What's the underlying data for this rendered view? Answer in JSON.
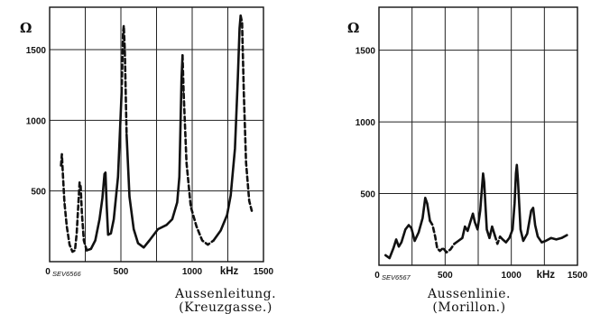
{
  "chart_data": [
    {
      "type": "line",
      "ylabel": "Ω",
      "xlabel": "kHz",
      "plate_code": "SEV6566",
      "xlim": [
        0,
        1500
      ],
      "ylim": [
        0,
        1800
      ],
      "xticks": [
        0,
        500,
        1000,
        1500
      ],
      "xtick_labels": [
        "0",
        "500",
        "1000",
        "1500"
      ],
      "yticks": [
        500,
        1000,
        1500
      ],
      "ytick_labels": [
        "500",
        "1000",
        "1500"
      ],
      "grid": true,
      "caption_line1": "Aussenleitung.",
      "caption_line2": "(Kreuzgasse.)",
      "series": [
        {
          "line_style": "solid/dashed",
          "points": [
            [
              80,
              680
            ],
            [
              86,
              760
            ],
            [
              92,
              640
            ],
            [
              104,
              420
            ],
            [
              120,
              250
            ],
            [
              140,
              120
            ],
            [
              160,
              70
            ],
            [
              178,
              80
            ],
            [
              190,
              200
            ],
            [
              200,
              380
            ],
            [
              210,
              560
            ],
            [
              218,
              530
            ],
            [
              226,
              350
            ],
            [
              240,
              150
            ],
            [
              260,
              80
            ],
            [
              290,
              90
            ],
            [
              320,
              150
            ],
            [
              350,
              300
            ],
            [
              370,
              450
            ],
            [
              385,
              620
            ],
            [
              392,
              630
            ],
            [
              400,
              400
            ],
            [
              410,
              190
            ],
            [
              430,
              200
            ],
            [
              450,
              300
            ],
            [
              480,
              600
            ],
            [
              505,
              1200
            ],
            [
              515,
              1620
            ],
            [
              520,
              1670
            ],
            [
              527,
              1500
            ],
            [
              540,
              900
            ],
            [
              560,
              460
            ],
            [
              590,
              230
            ],
            [
              620,
              130
            ],
            [
              660,
              100
            ],
            [
              700,
              150
            ],
            [
              760,
              230
            ],
            [
              820,
              260
            ],
            [
              860,
              300
            ],
            [
              895,
              420
            ],
            [
              910,
              600
            ],
            [
              925,
              1300
            ],
            [
              932,
              1460
            ],
            [
              940,
              1200
            ],
            [
              960,
              700
            ],
            [
              990,
              390
            ],
            [
              1030,
              250
            ],
            [
              1070,
              150
            ],
            [
              1110,
              120
            ],
            [
              1150,
              150
            ],
            [
              1200,
              220
            ],
            [
              1245,
              330
            ],
            [
              1270,
              470
            ],
            [
              1300,
              800
            ],
            [
              1320,
              1300
            ],
            [
              1332,
              1650
            ],
            [
              1340,
              1740
            ],
            [
              1350,
              1690
            ],
            [
              1362,
              1200
            ],
            [
              1378,
              700
            ],
            [
              1400,
              430
            ],
            [
              1418,
              360
            ]
          ]
        }
      ]
    },
    {
      "type": "line",
      "ylabel": "Ω",
      "xlabel": "kHz",
      "plate_code": "SEV6567",
      "xlim": [
        0,
        1500
      ],
      "ylim": [
        0,
        1800
      ],
      "xticks": [
        0,
        500,
        1000,
        1500
      ],
      "xtick_labels": [
        "0",
        "500",
        "1000",
        "1500"
      ],
      "yticks": [
        500,
        1000,
        1500
      ],
      "ytick_labels": [
        "500",
        "1000",
        "1500"
      ],
      "grid": true,
      "caption_line1": "Aussenlinie.",
      "caption_line2": "(Morillon.)",
      "series": [
        {
          "line_style": "solid/dashed",
          "points": [
            [
              50,
              70
            ],
            [
              80,
              50
            ],
            [
              110,
              120
            ],
            [
              130,
              180
            ],
            [
              150,
              130
            ],
            [
              170,
              160
            ],
            [
              200,
              250
            ],
            [
              225,
              280
            ],
            [
              245,
              260
            ],
            [
              270,
              170
            ],
            [
              300,
              230
            ],
            [
              330,
              330
            ],
            [
              350,
              470
            ],
            [
              365,
              430
            ],
            [
              385,
              310
            ],
            [
              405,
              280
            ],
            [
              425,
              200
            ],
            [
              440,
              120
            ],
            [
              460,
              100
            ],
            [
              485,
              120
            ],
            [
              510,
              90
            ],
            [
              540,
              110
            ],
            [
              570,
              150
            ],
            [
              600,
              170
            ],
            [
              630,
              190
            ],
            [
              650,
              270
            ],
            [
              670,
              240
            ],
            [
              690,
              300
            ],
            [
              710,
              360
            ],
            [
              725,
              300
            ],
            [
              745,
              250
            ],
            [
              765,
              380
            ],
            [
              780,
              560
            ],
            [
              787,
              640
            ],
            [
              795,
              580
            ],
            [
              815,
              250
            ],
            [
              835,
              190
            ],
            [
              855,
              270
            ],
            [
              875,
              210
            ],
            [
              895,
              150
            ],
            [
              915,
              200
            ],
            [
              935,
              180
            ],
            [
              960,
              160
            ],
            [
              985,
              190
            ],
            [
              1010,
              250
            ],
            [
              1025,
              430
            ],
            [
              1035,
              640
            ],
            [
              1042,
              700
            ],
            [
              1050,
              600
            ],
            [
              1070,
              250
            ],
            [
              1090,
              170
            ],
            [
              1120,
              220
            ],
            [
              1150,
              380
            ],
            [
              1165,
              400
            ],
            [
              1180,
              280
            ],
            [
              1200,
              200
            ],
            [
              1230,
              160
            ],
            [
              1260,
              170
            ],
            [
              1300,
              190
            ],
            [
              1340,
              180
            ],
            [
              1380,
              190
            ],
            [
              1420,
              210
            ]
          ]
        }
      ]
    }
  ]
}
